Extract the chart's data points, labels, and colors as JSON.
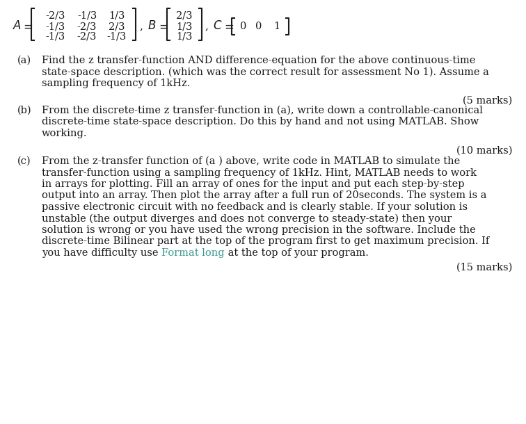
{
  "bg_color": "#ffffff",
  "text_color": "#1a1a1a",
  "highlight_color": "#3a9b8e",
  "font_size": 10.5,
  "font_size_matrix": 11,
  "matrix_a": [
    [
      "-2/3",
      "-1/3",
      "1/3"
    ],
    [
      "-1/3",
      "-2/3",
      "2/3"
    ],
    [
      "-1/3",
      "-2/3",
      "-1/3"
    ]
  ],
  "matrix_b": [
    "2/3",
    "1/3",
    "1/3"
  ],
  "matrix_c": [
    "0",
    "0",
    "1"
  ],
  "part_a_label": "(a)",
  "part_a_lines": [
    "Find the z transfer-function AND difference-equation for the above continuous-time",
    "state-space description. (which was the correct result for assessment No 1). Assume a",
    "sampling frequency of 1kHz."
  ],
  "part_a_marks": "(5 marks)",
  "part_b_label": "(b)",
  "part_b_lines": [
    "From the discrete-time z transfer-function in (a), write down a controllable-canonical",
    "discrete-time state-space description. Do this by hand and not using MATLAB. Show",
    "working."
  ],
  "part_b_marks": "(10 marks)",
  "part_c_label": "(c)",
  "part_c_lines": [
    "From the z-transfer function of (a ) above, write code in MATLAB to simulate the",
    "transfer-function using a sampling frequency of 1kHz. Hint, MATLAB needs to work",
    "in arrays for plotting. Fill an array of ones for the input and put each step-by-step",
    "output into an array. Then plot the array after a full run of 20seconds. The system is a",
    "passive electronic circuit with no feedback and is clearly stable. If your solution is",
    "unstable (the output diverges and does not converge to steady-state) then your",
    "solution is wrong or you have used the wrong precision in the software. Include the",
    "discrete-time Bilinear part at the top of the program first to get maximum precision. If"
  ],
  "part_c_last_before": "you have difficulty use ",
  "part_c_last_highlight": "Format long",
  "part_c_last_after": " at the top of your program.",
  "part_c_marks": "(15 marks)"
}
